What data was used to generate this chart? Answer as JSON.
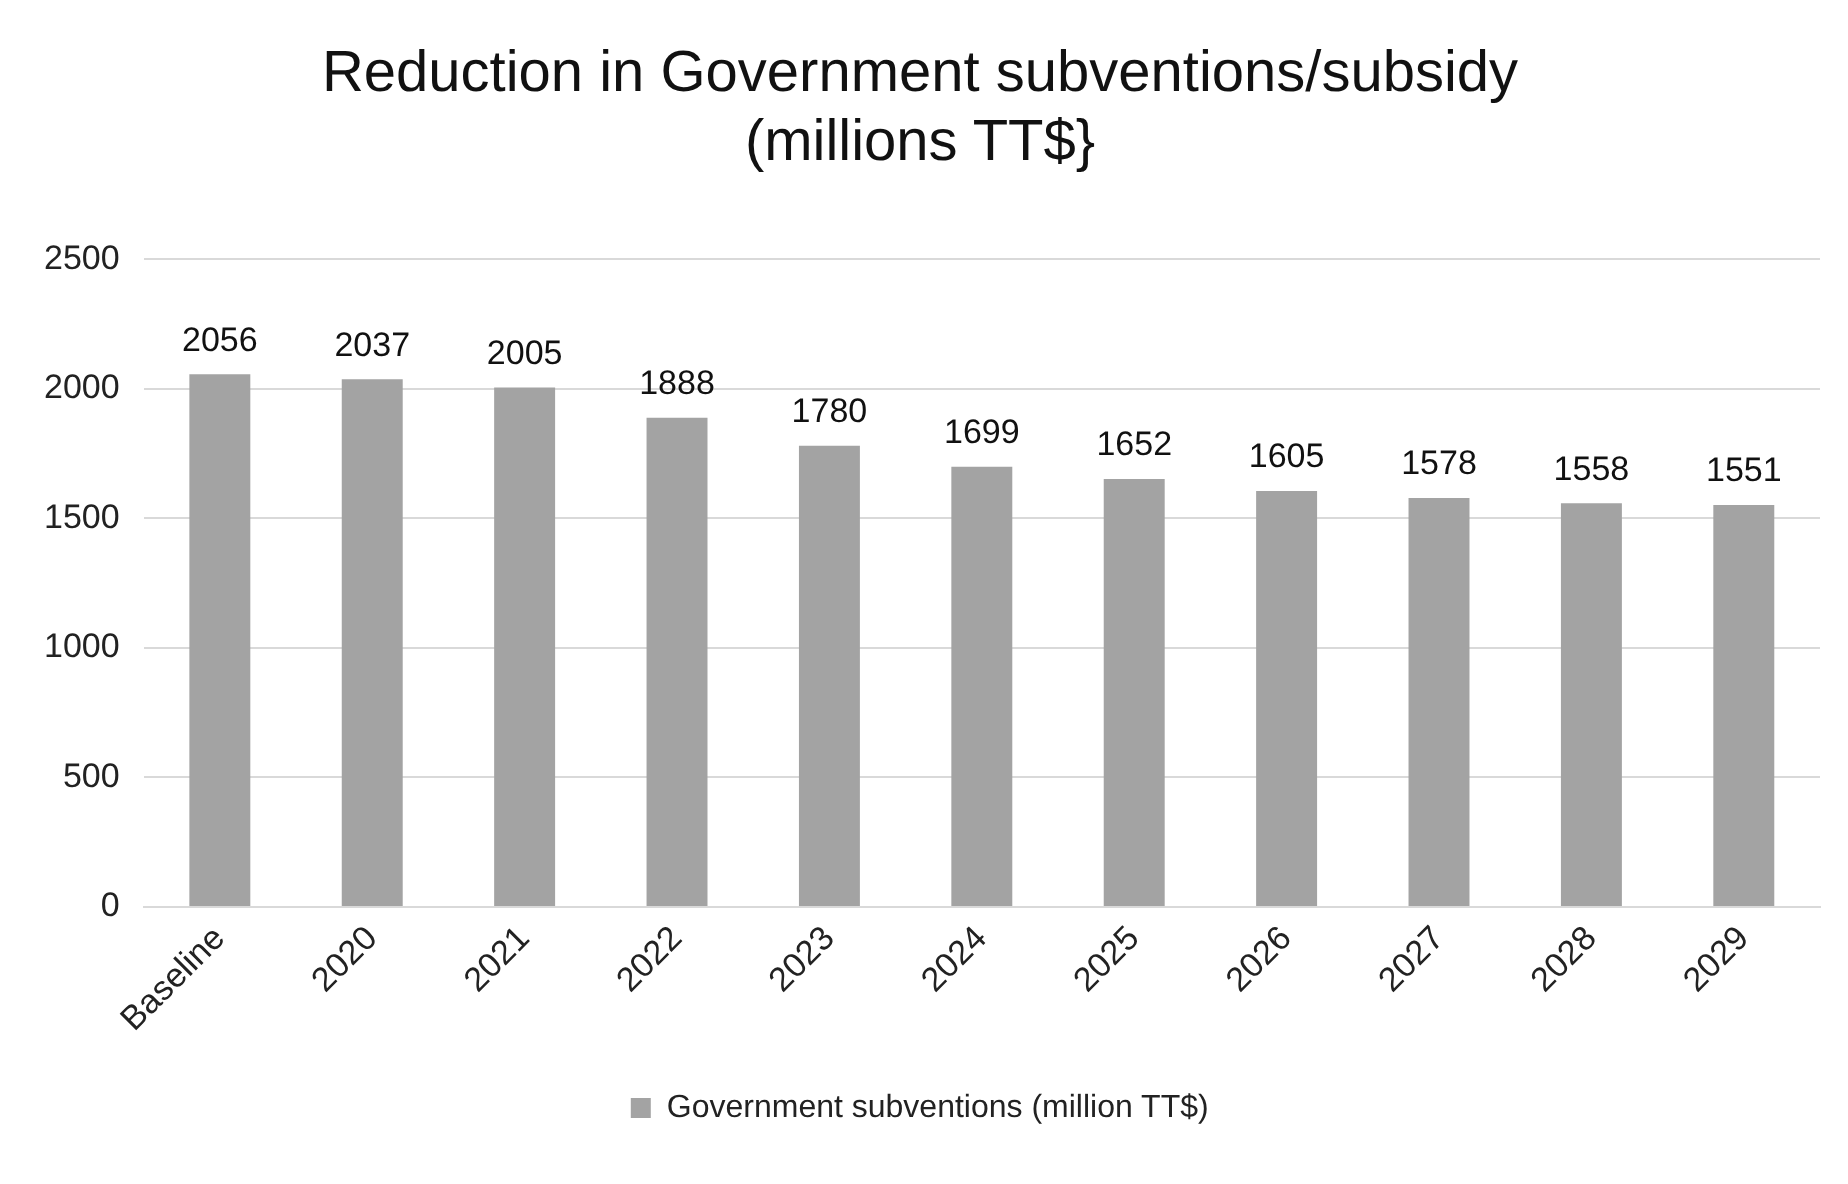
{
  "chart_data": {
    "type": "bar",
    "title": "Reduction in Government subventions/subsidy\n(millions TT$}",
    "categories": [
      "Baseline",
      "2020",
      "2021",
      "2022",
      "2023",
      "2024",
      "2025",
      "2026",
      "2027",
      "2028",
      "2029"
    ],
    "series": [
      {
        "name": "Government subventions (million TT$)",
        "color": "#a3a3a3",
        "values": [
          2056,
          2037,
          2005,
          1888,
          1780,
          1699,
          1652,
          1605,
          1578,
          1558,
          1551
        ]
      }
    ],
    "ylim": [
      0,
      2500
    ],
    "yticks": [
      0,
      500,
      1000,
      1500,
      2000,
      2500
    ],
    "grid": "y",
    "legend": "bottom",
    "data_labels": true
  }
}
